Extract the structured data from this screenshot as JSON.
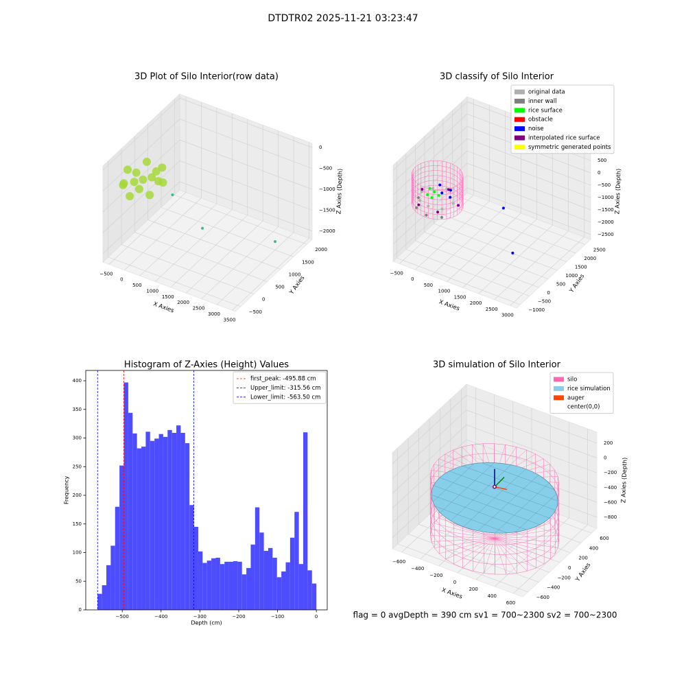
{
  "title": "DTDTR02 2025-11-21 03:23:47",
  "footer": "flag = 0     avgDepth = 390 cm  sv1 = 700~2300  sv2 = 700~2300",
  "chart_data": [
    {
      "type": "scatter3d",
      "title": "3D Plot of Silo Interior(row data)",
      "xlabel": "X Axies",
      "ylabel": "Y Axies",
      "zlabel": "Z Axies (Depth)",
      "xlim": [
        -700,
        3600
      ],
      "ylim": [
        -700,
        2200
      ],
      "zlim": [
        -2200,
        100
      ],
      "xticks": [
        {
          "value": -500,
          "label": "−500"
        },
        0,
        500,
        1000,
        1500,
        2000,
        2500,
        3000,
        3500
      ],
      "yticks": [
        {
          "value": -500,
          "label": "−500"
        },
        0,
        500,
        1000,
        1500,
        2000
      ],
      "zticks": [
        0,
        {
          "value": -500,
          "label": "−500"
        },
        {
          "value": -1000,
          "label": "−1000"
        },
        {
          "value": -1500,
          "label": "−1500"
        },
        {
          "value": -2000,
          "label": "−2000"
        }
      ],
      "series": [
        {
          "color": "#a6d83a",
          "x": [
            500,
            433,
            250,
            0,
            -250,
            -433,
            -500,
            -433,
            -250,
            0,
            250,
            433,
            0,
            200,
            -200
          ],
          "y": [
            0,
            250,
            433,
            500,
            433,
            250,
            0,
            -250,
            -433,
            -500,
            -433,
            -250,
            0,
            100,
            -100
          ],
          "z": [
            -350,
            -550,
            -350,
            -550,
            -350,
            -550,
            -350,
            -550,
            -350,
            -550,
            -350,
            -550,
            -450,
            -400,
            -500
          ]
        },
        {
          "color": "#3fb59c",
          "x": [
            700,
            1500,
            3000
          ],
          "y": [
            300,
            500,
            1500
          ],
          "z": [
            -800,
            -1500,
            -2000
          ]
        }
      ]
    },
    {
      "type": "scatter3d",
      "title": "3D classify of Silo Interior",
      "xlabel": "X Axies",
      "ylabel": "Y Axies",
      "zlabel": "Z Axies (Depth)",
      "xlim": [
        -700,
        3200
      ],
      "ylim": [
        -1200,
        2800
      ],
      "zlim": [
        -2700,
        1200
      ],
      "xticks": [
        {
          "value": -500,
          "label": "−500"
        },
        0,
        500,
        1000,
        1500,
        2000,
        2500,
        3000
      ],
      "yticks": [
        {
          "value": -1000,
          "label": "−1000"
        },
        {
          "value": -500,
          "label": "−500"
        },
        0,
        500,
        1000,
        1500,
        2000,
        2500
      ],
      "zticks": [
        1000,
        500,
        0,
        {
          "value": -500,
          "label": "−500"
        },
        {
          "value": -1000,
          "label": "−1000"
        },
        {
          "value": -1500,
          "label": "−1500"
        },
        {
          "value": -2000,
          "label": "−2000"
        },
        {
          "value": -2500,
          "label": "−2500"
        }
      ],
      "legend": "upper right",
      "cylinder": {
        "color": "#ff69b4",
        "radius": 700,
        "z_range": [
          -900,
          300
        ]
      },
      "series": [
        {
          "name": "original data",
          "color": "#b0b0b0",
          "x": [
            -500,
            -350,
            0,
            350,
            500,
            0,
            -350
          ],
          "y": [
            0,
            -350,
            -500,
            -350,
            0,
            500,
            350
          ],
          "z": [
            -600,
            -650,
            -600,
            -650,
            -600,
            -600,
            -650
          ]
        },
        {
          "name": "inner wall",
          "color": "#808080",
          "x": [
            -600,
            -400,
            0,
            400
          ],
          "y": [
            0,
            -450,
            -600,
            -450
          ],
          "z": [
            -900,
            -900,
            -900,
            -900
          ]
        },
        {
          "name": "rice surface",
          "color": "#00ff00",
          "x": [
            -200,
            0,
            -300,
            100,
            -100
          ],
          "y": [
            -200,
            -300,
            100,
            -100,
            0
          ],
          "z": [
            -450,
            -400,
            -450,
            -400,
            -420
          ]
        },
        {
          "name": "obstacle",
          "color": "#ff0000",
          "x": [],
          "y": [],
          "z": []
        },
        {
          "name": "noise",
          "color": "#0000ff",
          "x": [
            300,
            200,
            -100,
            400,
            1500,
            2200
          ],
          "y": [
            200,
            -100,
            300,
            0,
            1000,
            300
          ],
          "z": [
            -300,
            -250,
            -350,
            -400,
            -1000,
            -2000
          ]
        },
        {
          "name": "interpolated rice surface",
          "color": "#800080",
          "x": [
            -600,
            -300,
            300,
            600,
            0
          ],
          "y": [
            200,
            -500,
            -500,
            100,
            600
          ],
          "z": [
            -700,
            -700,
            -700,
            -700,
            -700
          ]
        },
        {
          "name": "symmetric generated points",
          "color": "#ffff00",
          "x": [],
          "y": [],
          "z": []
        }
      ]
    },
    {
      "type": "hist",
      "title": "Histogram of Z-Axies (Height) Values",
      "xlabel": "Depth (cm)",
      "ylabel": "Frequency",
      "color": "#4d4dff",
      "xlim": [
        -594,
        28
      ],
      "ylim": [
        0,
        418
      ],
      "xticks": [
        {
          "value": -500,
          "label": "−500"
        },
        {
          "value": -400,
          "label": "−400"
        },
        {
          "value": -300,
          "label": "−300"
        },
        {
          "value": -200,
          "label": "−200"
        },
        {
          "value": -100,
          "label": "−100"
        },
        0
      ],
      "yticks": [
        0,
        50,
        100,
        150,
        200,
        250,
        300,
        350,
        400
      ],
      "bins": [
        -563.5,
        -552.23,
        -540.96,
        -529.69,
        -518.42,
        -507.15,
        -495.88,
        -484.61,
        -473.34,
        -462.07,
        -450.8,
        -439.53,
        -428.26,
        -416.99,
        -405.72,
        -394.45,
        -383.18,
        -371.91,
        -360.64,
        -349.37,
        -338.1,
        -326.83,
        -315.56,
        -304.29,
        -293.02,
        -281.75,
        -270.48,
        -259.21,
        -247.94,
        -236.67,
        -225.4,
        -214.13,
        -202.86,
        -191.59,
        -180.32,
        -169.05,
        -157.78,
        -146.51,
        -135.24,
        -123.97,
        -112.7,
        -101.43,
        -90.16,
        -78.89,
        -67.62,
        -56.35,
        -45.08,
        -33.81,
        -22.54,
        -11.27,
        0
      ],
      "counts": [
        28,
        43,
        78,
        112,
        180,
        252,
        397,
        344,
        308,
        282,
        285,
        311,
        295,
        299,
        307,
        302,
        314,
        309,
        322,
        309,
        291,
        183,
        145,
        102,
        82,
        86,
        90,
        91,
        80,
        84,
        84,
        85,
        84,
        62,
        73,
        114,
        179,
        135,
        103,
        108,
        91,
        57,
        67,
        83,
        126,
        171,
        80,
        310,
        69,
        46
      ],
      "legend": "upper right",
      "vlines": [
        {
          "value": -495.88,
          "label": "first_peak: -495.88 cm",
          "color": "#ff0000"
        },
        {
          "value": -315.56,
          "label": "Upper_limit: -315.56 cm",
          "color": "#0000ff"
        },
        {
          "value": -563.5,
          "label": "Lower_limit: -563.50 cm",
          "color": "#0000ff"
        }
      ]
    },
    {
      "type": "scatter3d",
      "title": "3D simulation of Silo Interior",
      "xlabel": "X Axies",
      "ylabel": "Y Axies",
      "zlabel": "Z Axies (Depth)",
      "xlim": [
        -700,
        700
      ],
      "ylim": [
        -700,
        700
      ],
      "zlim": [
        -950,
        350
      ],
      "xticks": [
        {
          "value": -600,
          "label": "−600"
        },
        {
          "value": -400,
          "label": "−400"
        },
        {
          "value": -200,
          "label": "−200"
        },
        0,
        200,
        400,
        600
      ],
      "yticks": [
        {
          "value": -600,
          "label": "−600"
        },
        {
          "value": -400,
          "label": "−400"
        },
        {
          "value": -200,
          "label": "−200"
        },
        0,
        200,
        400,
        600
      ],
      "zticks": [
        200,
        0,
        {
          "value": -200,
          "label": "−200"
        },
        {
          "value": -400,
          "label": "−400"
        },
        {
          "value": -600,
          "label": "−600"
        },
        {
          "value": -800,
          "label": "−800"
        }
      ],
      "legend": "upper right",
      "series": [
        {
          "name": "silo",
          "color": "#ff69b4",
          "kind": "wireframe",
          "radius": 600,
          "z_range": [
            -950,
            -150
          ]
        },
        {
          "name": "rice simulation",
          "color": "#87ceeb",
          "kind": "surface",
          "radius": 590,
          "z": -400
        },
        {
          "name": "auger",
          "color": "#ff4500",
          "kind": "quiver",
          "x": 0,
          "y": 0,
          "z": -250
        },
        {
          "name": "center(0,0)",
          "color": "#ffffff",
          "kind": "point",
          "x": 0,
          "y": 0,
          "z": -250
        }
      ]
    }
  ]
}
